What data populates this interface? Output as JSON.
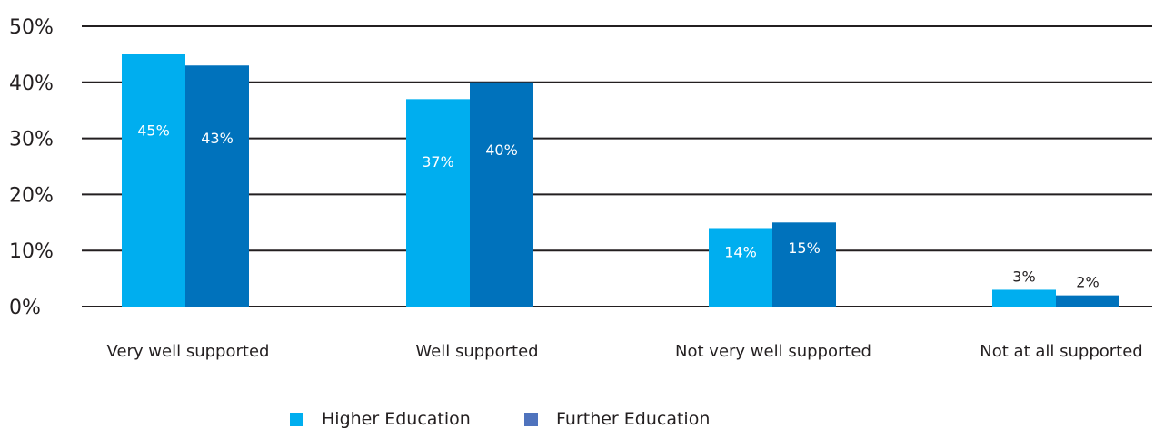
{
  "chart_data": {
    "type": "bar",
    "categories": [
      "Very well supported",
      "Well supported",
      "Not very well supported",
      "Not at all supported"
    ],
    "series": [
      {
        "name": "Higher Education",
        "values": [
          45,
          37,
          14,
          3
        ],
        "labels": [
          "45%",
          "37%",
          "14%",
          "3%"
        ],
        "color": "#00aeef"
      },
      {
        "name": "Further Education",
        "values": [
          43,
          40,
          15,
          2
        ],
        "labels": [
          "43%",
          "40%",
          "15%",
          "2%"
        ],
        "color": "#0072bc"
      }
    ],
    "ylim": [
      0,
      50
    ],
    "yticks": [
      "0%",
      "10%",
      "20%",
      "30%",
      "40%",
      "50%"
    ],
    "grid": true,
    "legend_position": "bottom",
    "legend_colors": [
      "#00aeef",
      "#4f73bd"
    ]
  }
}
